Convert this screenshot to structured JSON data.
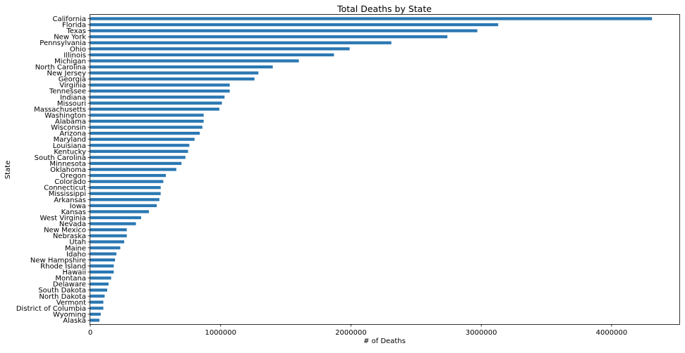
{
  "chart_data": {
    "type": "bar",
    "orientation": "horizontal",
    "title": "Total Deaths by State",
    "xlabel": "# of Deaths",
    "ylabel": "State",
    "xlim": [
      0,
      4520000
    ],
    "xticks": [
      0,
      1000000,
      2000000,
      3000000,
      4000000
    ],
    "xtick_labels": [
      "0",
      "1000000",
      "2000000",
      "3000000",
      "4000000"
    ],
    "grid": false,
    "legend": "none",
    "bar_color": "#2b78b3",
    "categories": [
      "California",
      "Florida",
      "Texas",
      "New York",
      "Pennsylvania",
      "Ohio",
      "Illinois",
      "Michigan",
      "North Carolina",
      "New Jersey",
      "Georgia",
      "Virginia",
      "Tennessee",
      "Indiana",
      "Missouri",
      "Massachusetts",
      "Washington",
      "Alabama",
      "Wisconsin",
      "Arizona",
      "Maryland",
      "Louisiana",
      "Kentucky",
      "South Carolina",
      "Minnesota",
      "Oklahoma",
      "Oregon",
      "Colorado",
      "Connecticut",
      "Mississippi",
      "Arkansas",
      "Iowa",
      "Kansas",
      "West Virginia",
      "Nevada",
      "New Mexico",
      "Nebraska",
      "Utah",
      "Maine",
      "Idaho",
      "New Hampshire",
      "Rhode Island",
      "Hawaii",
      "Montana",
      "Delaware",
      "South Dakota",
      "North Dakota",
      "Vermont",
      "District of Columbia",
      "Wyoming",
      "Alaska"
    ],
    "values": [
      4310000,
      3130000,
      2970000,
      2740000,
      2310000,
      1990000,
      1870000,
      1600000,
      1400000,
      1290000,
      1260000,
      1070000,
      1070000,
      1030000,
      1010000,
      990000,
      870000,
      870000,
      860000,
      840000,
      800000,
      760000,
      750000,
      730000,
      700000,
      660000,
      580000,
      560000,
      540000,
      540000,
      530000,
      510000,
      450000,
      390000,
      350000,
      280000,
      280000,
      260000,
      230000,
      200000,
      190000,
      180000,
      180000,
      160000,
      140000,
      130000,
      110000,
      100000,
      100000,
      80000,
      70000
    ]
  }
}
